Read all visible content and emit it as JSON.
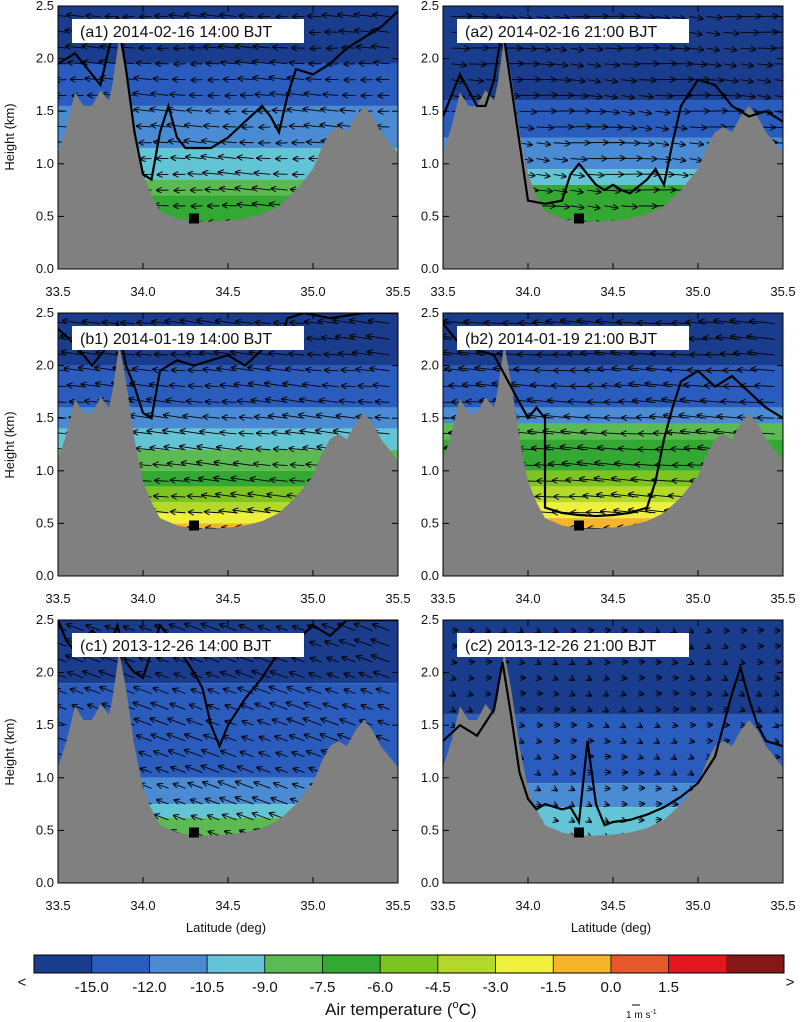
{
  "chart_data": {
    "type": "contour-cross-section",
    "xlabel": "Latitude (deg)",
    "ylabel": "Height (km)",
    "xlim": [
      33.5,
      35.5
    ],
    "ylim": [
      0,
      2.5
    ],
    "x_ticks": [
      "33.5",
      "34.0",
      "34.5",
      "35.0",
      "35.5"
    ],
    "y_ticks": [
      "0.0",
      "0.5",
      "1.0",
      "1.5",
      "2.0",
      "2.5"
    ],
    "station": {
      "lat": 34.3,
      "height_km": 0.48
    },
    "terrain": [
      [
        33.5,
        1.1
      ],
      [
        33.55,
        1.35
      ],
      [
        33.6,
        1.68
      ],
      [
        33.65,
        1.55
      ],
      [
        33.7,
        1.55
      ],
      [
        33.75,
        1.7
      ],
      [
        33.8,
        1.6
      ],
      [
        33.82,
        1.75
      ],
      [
        33.86,
        2.2
      ],
      [
        33.9,
        1.85
      ],
      [
        33.95,
        1.3
      ],
      [
        34.0,
        0.9
      ],
      [
        34.05,
        0.7
      ],
      [
        34.1,
        0.55
      ],
      [
        34.2,
        0.48
      ],
      [
        34.3,
        0.45
      ],
      [
        34.4,
        0.45
      ],
      [
        34.5,
        0.46
      ],
      [
        34.6,
        0.48
      ],
      [
        34.7,
        0.52
      ],
      [
        34.8,
        0.6
      ],
      [
        34.9,
        0.75
      ],
      [
        35.0,
        0.95
      ],
      [
        35.05,
        1.15
      ],
      [
        35.1,
        1.3
      ],
      [
        35.15,
        1.35
      ],
      [
        35.2,
        1.3
      ],
      [
        35.25,
        1.45
      ],
      [
        35.3,
        1.55
      ],
      [
        35.35,
        1.45
      ],
      [
        35.4,
        1.3
      ],
      [
        35.45,
        1.2
      ],
      [
        35.5,
        1.1
      ]
    ],
    "colorbar": {
      "title": "Air temperature (",
      "title_unit": "C)",
      "degree": "o",
      "left_arrow": "<",
      "right_arrow": ">",
      "labels": [
        "-15.0",
        "-12.0",
        "-10.5",
        "-9.0",
        "-7.5",
        "-6.0",
        "-4.5",
        "-3.0",
        "-1.5",
        "0.0",
        "1.5"
      ],
      "colors": [
        "#1a3c8c",
        "#2a5cbe",
        "#4a8bd4",
        "#62c4d4",
        "#5cba52",
        "#33a832",
        "#7ec421",
        "#b4d92a",
        "#eff03b",
        "#f5b52b",
        "#e8582d",
        "#e3161e",
        "#861717"
      ]
    },
    "wind_reference": {
      "label": "1 m s",
      "exponent": "-1"
    },
    "panels": [
      {
        "id": "a1",
        "label": "(a1) 2014-02-16 14:00 BJT",
        "uniform_wind": [
          -0.8,
          0.05
        ],
        "bands": [
          [
            1.95,
            "#1a3c8c"
          ],
          [
            1.55,
            "#2a5cbe"
          ],
          [
            1.15,
            "#4a8bd4"
          ],
          [
            0.85,
            "#62c4d4"
          ],
          [
            0.7,
            "#5cba52"
          ],
          [
            0.0,
            "#33a832"
          ]
        ],
        "line": [
          [
            33.5,
            1.95
          ],
          [
            33.6,
            2.05
          ],
          [
            33.7,
            1.85
          ],
          [
            33.75,
            1.75
          ],
          [
            33.8,
            2.1
          ],
          [
            33.85,
            2.4
          ],
          [
            33.9,
            1.9
          ],
          [
            33.95,
            1.3
          ],
          [
            34.0,
            0.9
          ],
          [
            34.05,
            0.85
          ],
          [
            34.1,
            1.3
          ],
          [
            34.15,
            1.55
          ],
          [
            34.2,
            1.25
          ],
          [
            34.25,
            1.15
          ],
          [
            34.3,
            1.15
          ],
          [
            34.4,
            1.15
          ],
          [
            34.5,
            1.25
          ],
          [
            34.6,
            1.4
          ],
          [
            34.7,
            1.55
          ],
          [
            34.75,
            1.45
          ],
          [
            34.8,
            1.3
          ],
          [
            34.85,
            1.65
          ],
          [
            34.9,
            1.9
          ],
          [
            35.0,
            1.85
          ],
          [
            35.1,
            1.95
          ],
          [
            35.2,
            2.1
          ],
          [
            35.3,
            2.2
          ],
          [
            35.4,
            2.3
          ],
          [
            35.5,
            2.45
          ]
        ]
      },
      {
        "id": "a2",
        "label": "(a2) 2014-02-16 21:00 BJT",
        "uniform_wind": [
          0.9,
          -0.05
        ],
        "bands": [
          [
            1.6,
            "#1a3c8c"
          ],
          [
            1.25,
            "#2a5cbe"
          ],
          [
            0.95,
            "#4a8bd4"
          ],
          [
            0.8,
            "#62c4d4"
          ],
          [
            0.0,
            "#33a832"
          ]
        ],
        "line": [
          [
            33.5,
            1.45
          ],
          [
            33.6,
            1.85
          ],
          [
            33.65,
            1.7
          ],
          [
            33.7,
            1.55
          ],
          [
            33.75,
            1.55
          ],
          [
            33.8,
            1.8
          ],
          [
            33.85,
            2.3
          ],
          [
            33.95,
            1.2
          ],
          [
            34.0,
            0.65
          ],
          [
            34.1,
            0.62
          ],
          [
            34.2,
            0.65
          ],
          [
            34.25,
            0.9
          ],
          [
            34.3,
            1.0
          ],
          [
            34.4,
            0.8
          ],
          [
            34.45,
            0.75
          ],
          [
            34.5,
            0.8
          ],
          [
            34.55,
            0.75
          ],
          [
            34.6,
            0.72
          ],
          [
            34.7,
            0.85
          ],
          [
            34.75,
            0.95
          ],
          [
            34.8,
            0.8
          ],
          [
            34.85,
            1.2
          ],
          [
            34.9,
            1.55
          ],
          [
            35.0,
            1.8
          ],
          [
            35.1,
            1.75
          ],
          [
            35.2,
            1.55
          ],
          [
            35.3,
            1.45
          ],
          [
            35.4,
            1.5
          ],
          [
            35.5,
            1.4
          ]
        ]
      },
      {
        "id": "b1",
        "label": "(b1) 2014-01-19 14:00 BJT",
        "uniform_wind": [
          -1.0,
          0.12
        ],
        "bands": [
          [
            2.0,
            "#1a3c8c"
          ],
          [
            1.6,
            "#2a5cbe"
          ],
          [
            1.4,
            "#4a8bd4"
          ],
          [
            1.2,
            "#62c4d4"
          ],
          [
            1.0,
            "#5cba52"
          ],
          [
            0.85,
            "#33a832"
          ],
          [
            0.7,
            "#7ec421"
          ],
          [
            0.6,
            "#b4d92a"
          ],
          [
            0.5,
            "#eff03b"
          ],
          [
            0.0,
            "#f5b52b"
          ]
        ],
        "line": [
          [
            33.5,
            2.35
          ],
          [
            33.6,
            2.2
          ],
          [
            33.7,
            2.0
          ],
          [
            33.8,
            2.2
          ],
          [
            33.85,
            2.4
          ],
          [
            33.9,
            2.0
          ],
          [
            33.95,
            1.8
          ],
          [
            34.0,
            1.55
          ],
          [
            34.05,
            1.5
          ],
          [
            34.1,
            1.95
          ],
          [
            34.2,
            2.05
          ],
          [
            34.3,
            2.0
          ],
          [
            34.4,
            2.05
          ],
          [
            34.5,
            2.1
          ],
          [
            34.6,
            2.0
          ],
          [
            34.7,
            2.15
          ],
          [
            34.75,
            2.3
          ],
          [
            34.8,
            2.2
          ],
          [
            34.85,
            2.45
          ],
          [
            34.95,
            2.5
          ],
          [
            35.1,
            2.45
          ],
          [
            35.3,
            2.5
          ],
          [
            35.5,
            2.5
          ]
        ]
      },
      {
        "id": "b2",
        "label": "(b2) 2014-01-19 21:00 BJT",
        "uniform_wind": [
          -1.2,
          0.1
        ],
        "bands": [
          [
            2.0,
            "#1a3c8c"
          ],
          [
            1.6,
            "#2a5cbe"
          ],
          [
            1.45,
            "#4a8bd4"
          ],
          [
            1.3,
            "#5cba52"
          ],
          [
            1.0,
            "#33a832"
          ],
          [
            0.85,
            "#7ec421"
          ],
          [
            0.7,
            "#b4d92a"
          ],
          [
            0.55,
            "#eff03b"
          ],
          [
            0.0,
            "#f5b52b"
          ]
        ],
        "line": [
          [
            33.5,
            2.4
          ],
          [
            33.6,
            2.2
          ],
          [
            33.8,
            2.1
          ],
          [
            33.9,
            1.8
          ],
          [
            34.0,
            1.5
          ],
          [
            34.05,
            1.6
          ],
          [
            34.1,
            1.5
          ],
          [
            34.1,
            0.65
          ],
          [
            34.2,
            0.6
          ],
          [
            34.3,
            0.58
          ],
          [
            34.4,
            0.57
          ],
          [
            34.5,
            0.58
          ],
          [
            34.6,
            0.6
          ],
          [
            34.7,
            0.65
          ],
          [
            34.75,
            0.9
          ],
          [
            34.8,
            1.3
          ],
          [
            34.85,
            1.6
          ],
          [
            34.9,
            1.85
          ],
          [
            35.0,
            1.95
          ],
          [
            35.1,
            1.8
          ],
          [
            35.2,
            1.9
          ],
          [
            35.3,
            1.75
          ],
          [
            35.4,
            1.6
          ],
          [
            35.5,
            1.5
          ]
        ]
      },
      {
        "id": "c1",
        "label": "(c1) 2013-12-26 14:00 BJT",
        "uniform_wind": [
          -0.8,
          0.3
        ],
        "bands": [
          [
            1.9,
            "#1a3c8c"
          ],
          [
            1.0,
            "#2a5cbe"
          ],
          [
            0.75,
            "#4a8bd4"
          ],
          [
            0.62,
            "#62c4d4"
          ],
          [
            0.0,
            "#5cba52"
          ]
        ],
        "line": [
          [
            33.5,
            2.5
          ],
          [
            33.55,
            2.3
          ],
          [
            33.6,
            2.2
          ],
          [
            33.7,
            2.4
          ],
          [
            33.8,
            2.25
          ],
          [
            33.85,
            2.45
          ],
          [
            33.9,
            2.1
          ],
          [
            33.95,
            2.0
          ],
          [
            34.0,
            1.95
          ],
          [
            34.05,
            2.2
          ],
          [
            34.1,
            2.45
          ],
          [
            34.2,
            2.25
          ],
          [
            34.3,
            2.0
          ],
          [
            34.35,
            1.85
          ],
          [
            34.4,
            1.5
          ],
          [
            34.45,
            1.3
          ],
          [
            34.5,
            1.5
          ],
          [
            34.6,
            1.75
          ],
          [
            34.7,
            1.95
          ],
          [
            34.8,
            2.2
          ],
          [
            34.9,
            2.3
          ],
          [
            35.0,
            2.45
          ],
          [
            35.1,
            2.35
          ],
          [
            35.2,
            2.5
          ],
          [
            35.5,
            2.5
          ]
        ]
      },
      {
        "id": "c2",
        "label": "(c2) 2013-12-26 21:00 BJT",
        "uniform_wind": [
          0.25,
          -0.05
        ],
        "bands": [
          [
            1.6,
            "#1a3c8c"
          ],
          [
            0.95,
            "#2a5cbe"
          ],
          [
            0.72,
            "#4a8bd4"
          ],
          [
            0.0,
            "#62c4d4"
          ]
        ],
        "line": [
          [
            33.5,
            1.35
          ],
          [
            33.6,
            1.5
          ],
          [
            33.7,
            1.4
          ],
          [
            33.8,
            1.65
          ],
          [
            33.85,
            2.1
          ],
          [
            33.9,
            1.6
          ],
          [
            33.95,
            1.05
          ],
          [
            34.0,
            0.8
          ],
          [
            34.05,
            0.7
          ],
          [
            34.1,
            0.75
          ],
          [
            34.2,
            0.7
          ],
          [
            34.25,
            0.72
          ],
          [
            34.3,
            0.58
          ],
          [
            34.35,
            1.35
          ],
          [
            34.4,
            0.75
          ],
          [
            34.45,
            0.55
          ],
          [
            34.5,
            0.58
          ],
          [
            34.6,
            0.6
          ],
          [
            34.7,
            0.65
          ],
          [
            34.8,
            0.72
          ],
          [
            34.9,
            0.82
          ],
          [
            35.0,
            0.95
          ],
          [
            35.1,
            1.2
          ],
          [
            35.2,
            1.8
          ],
          [
            35.25,
            2.05
          ],
          [
            35.3,
            1.75
          ],
          [
            35.35,
            1.5
          ],
          [
            35.4,
            1.35
          ],
          [
            35.5,
            1.3
          ]
        ]
      }
    ]
  }
}
